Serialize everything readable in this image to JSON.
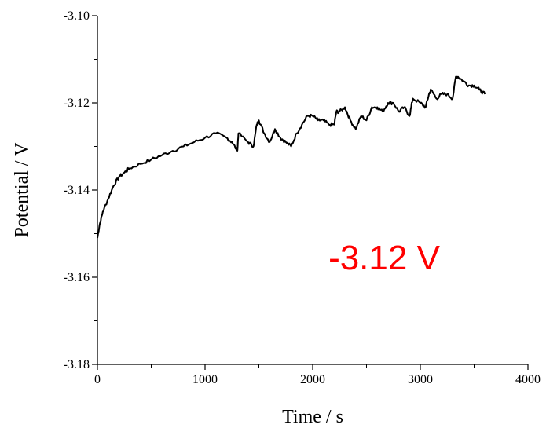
{
  "chart_data": {
    "type": "line",
    "title": "",
    "xlabel": "Time / s",
    "ylabel": "Potential / V",
    "xlim": [
      0,
      4000
    ],
    "ylim": [
      -3.18,
      -3.1
    ],
    "x_ticks": [
      "0",
      "1000",
      "2000",
      "3000",
      "4000"
    ],
    "y_ticks": [
      "-3.10",
      "-3.12",
      "-3.14",
      "-3.16",
      "-3.18"
    ],
    "grid": false,
    "legend": "none",
    "annotation": {
      "text": "-3.12 V",
      "color": "#ff0000"
    },
    "line_color": "#000000",
    "series": [
      {
        "x": [
          0,
          20,
          50,
          100,
          150,
          200,
          250,
          300,
          400,
          500,
          600,
          700,
          800,
          900,
          1000,
          1100,
          1200,
          1250,
          1300,
          1310,
          1400,
          1450,
          1480,
          1500,
          1550,
          1600,
          1650,
          1700,
          1750,
          1800,
          1850,
          1900,
          1950,
          2000,
          2050,
          2100,
          2150,
          2200,
          2220,
          2250,
          2300,
          2350,
          2400,
          2450,
          2500,
          2550,
          2600,
          2650,
          2700,
          2750,
          2800,
          2850,
          2900,
          2930,
          3000,
          3050,
          3080,
          3100,
          3150,
          3200,
          3250,
          3300,
          3330,
          3350,
          3400,
          3450,
          3500,
          3550,
          3600
        ],
        "y": [
          -3.151,
          -3.148,
          -3.145,
          -3.142,
          -3.139,
          -3.137,
          -3.136,
          -3.135,
          -3.134,
          -3.133,
          -3.132,
          -3.131,
          -3.13,
          -3.129,
          -3.128,
          -3.127,
          -3.128,
          -3.129,
          -3.131,
          -3.127,
          -3.129,
          -3.13,
          -3.125,
          -3.124,
          -3.127,
          -3.129,
          -3.126,
          -3.128,
          -3.129,
          -3.13,
          -3.127,
          -3.125,
          -3.123,
          -3.123,
          -3.124,
          -3.124,
          -3.125,
          -3.125,
          -3.122,
          -3.122,
          -3.121,
          -3.124,
          -3.126,
          -3.123,
          -3.124,
          -3.121,
          -3.121,
          -3.122,
          -3.12,
          -3.12,
          -3.122,
          -3.121,
          -3.123,
          -3.119,
          -3.12,
          -3.121,
          -3.118,
          -3.117,
          -3.119,
          -3.118,
          -3.118,
          -3.119,
          -3.114,
          -3.114,
          -3.115,
          -3.116,
          -3.116,
          -3.117,
          -3.118
        ]
      }
    ]
  }
}
